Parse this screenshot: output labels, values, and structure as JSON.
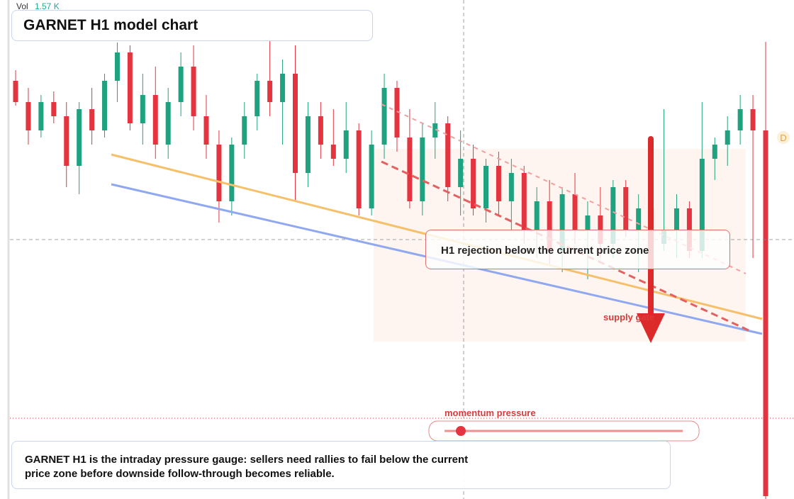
{
  "chart_data": {
    "type": "candlestick",
    "title": "GARNET H1 model chart",
    "volume_label": "Vol",
    "volume_value": "1.57 K",
    "up_color": "#1fa27f",
    "down_color": "#e3343f",
    "ylim": [
      0,
      704
    ],
    "open": [
      590,
      560,
      520,
      560,
      540,
      470,
      550,
      520,
      590,
      630,
      530,
      570,
      500,
      560,
      610,
      540,
      500,
      420,
      500,
      540,
      590,
      560,
      600,
      460,
      540,
      500,
      480,
      520,
      410,
      500,
      580,
      510,
      420,
      510,
      530,
      440,
      480,
      410,
      470,
      420,
      460,
      380,
      420,
      350,
      430,
      380,
      400,
      360,
      440,
      380,
      410,
      360,
      380,
      410,
      350,
      480,
      500,
      520,
      550,
      520
    ],
    "high": [
      605,
      580,
      570,
      575,
      560,
      560,
      580,
      600,
      644,
      640,
      600,
      610,
      580,
      630,
      640,
      570,
      520,
      510,
      560,
      600,
      650,
      620,
      640,
      560,
      560,
      550,
      560,
      530,
      520,
      600,
      590,
      550,
      530,
      560,
      540,
      520,
      500,
      480,
      490,
      480,
      470,
      440,
      450,
      440,
      460,
      420,
      440,
      450,
      450,
      430,
      420,
      550,
      430,
      420,
      560,
      510,
      540,
      570,
      570,
      645
    ],
    "low": [
      555,
      500,
      510,
      530,
      440,
      430,
      500,
      510,
      560,
      520,
      500,
      480,
      480,
      540,
      520,
      480,
      390,
      400,
      480,
      520,
      540,
      500,
      420,
      440,
      480,
      470,
      460,
      400,
      400,
      480,
      490,
      410,
      400,
      480,
      420,
      400,
      400,
      390,
      400,
      380,
      360,
      340,
      330,
      320,
      360,
      310,
      340,
      340,
      370,
      320,
      350,
      350,
      340,
      340,
      340,
      450,
      470,
      500,
      340,
      0
    ],
    "close": [
      560,
      520,
      560,
      540,
      470,
      550,
      520,
      590,
      630,
      530,
      570,
      500,
      560,
      610,
      540,
      500,
      420,
      500,
      540,
      590,
      560,
      600,
      460,
      540,
      500,
      480,
      520,
      410,
      500,
      580,
      510,
      420,
      510,
      530,
      440,
      480,
      410,
      470,
      420,
      460,
      380,
      420,
      350,
      430,
      380,
      400,
      360,
      440,
      380,
      410,
      360,
      380,
      410,
      350,
      480,
      500,
      520,
      550,
      520,
      4
    ],
    "rejection_note": "H1 rejection below the current price zone",
    "arrow_label": "supply gate",
    "gauge_label": "momentum pressure",
    "marker": "D",
    "description": "GARNET H1 is the intraday pressure gauge: sellers need rallies to fail below the current price zone before downside follow-through becomes reliable."
  }
}
